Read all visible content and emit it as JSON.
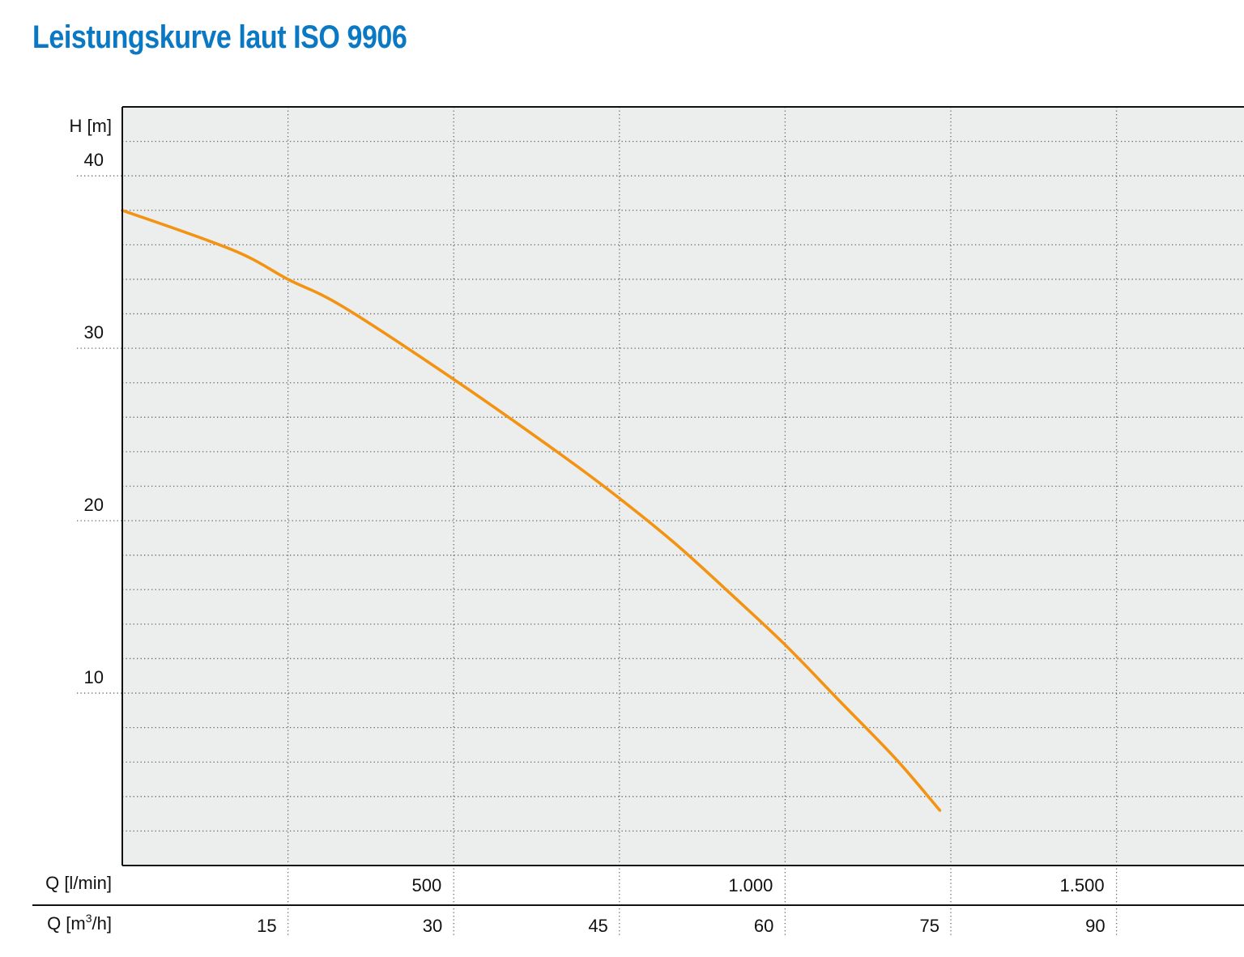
{
  "title": "Leistungskurve laut ISO 9906",
  "colors": {
    "title": "#0a78c3",
    "curve": "#f39313",
    "plot_bg": "#eceeed",
    "grid": "#666666",
    "axis": "#111111"
  },
  "chart_data": {
    "type": "line",
    "title": "Leistungskurve laut ISO 9906",
    "ylabel": "H [m]",
    "ylim": [
      0,
      44
    ],
    "y_ticks": [
      10,
      20,
      30,
      40
    ],
    "y_tick_labels": [
      "10",
      "20",
      "30",
      "40"
    ],
    "y_minor_step": 2,
    "x_axis_primary": {
      "label": "Q [m³/h]",
      "label_base": "Q [m",
      "label_sup": "3",
      "label_tail": "/h]",
      "xlim": [
        0,
        101.25
      ],
      "ticks": [
        15,
        30,
        45,
        60,
        75,
        90
      ],
      "tick_labels": [
        "15",
        "30",
        "45",
        "60",
        "75",
        "90"
      ]
    },
    "x_axis_secondary": {
      "label": "Q [l/min]",
      "ticks": [
        500,
        1000,
        1500
      ],
      "tick_labels": [
        "500",
        "1.000",
        "1.500"
      ]
    },
    "grid": true,
    "series": [
      {
        "x": [
          0,
          10,
          15,
          20,
          30,
          40,
          45,
          50,
          55,
          60,
          65,
          70,
          74
        ],
        "y": [
          38.0,
          35.7,
          34.0,
          32.4,
          28.2,
          23.7,
          21.3,
          18.7,
          15.8,
          12.8,
          9.5,
          6.2,
          3.2
        ]
      }
    ]
  }
}
